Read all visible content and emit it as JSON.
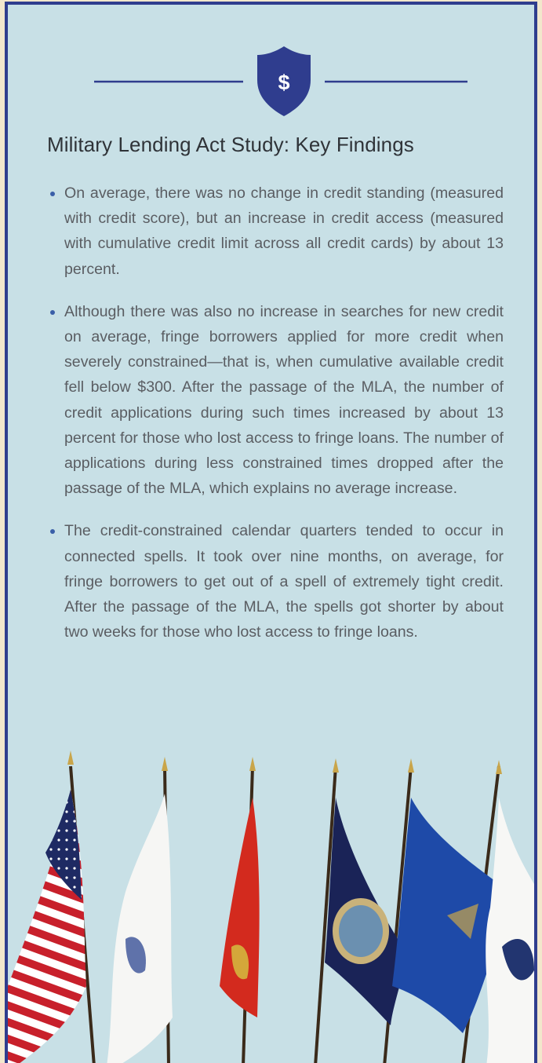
{
  "title": "Military Lending Act Study: Key Findings",
  "shield_symbol": "$",
  "bullets": [
    "On average, there was no change in credit standing (measured with credit score), but an increase in credit access (measured with cumulative credit limit across all credit cards) by about 13 percent.",
    "Although there was also no increase in searches for new credit on average, fringe borrowers applied for more credit when severely constrained—that is, when cumulative available credit fell below $300. After the passage of the MLA, the number of credit applications during such times increased by about 13 percent for those who lost access to fringe loans. The number of applications during less constrained times dropped after the passage of the MLA, which explains no aver­age increase.",
    "The credit-constrained calendar quarters tended to occur in connected spells. It took over nine months, on average, for fringe borrowers to get out of a spell of extremely tight credit. After the passage of the MLA, the spells got shorter by about two weeks for those who lost access to fringe loans."
  ]
}
